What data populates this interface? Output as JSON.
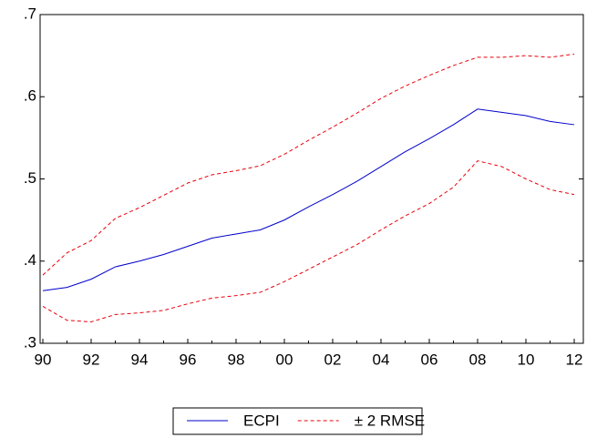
{
  "chart_data": {
    "type": "line",
    "categories": [
      "90",
      null,
      "92",
      null,
      "94",
      null,
      "96",
      null,
      "98",
      null,
      "00",
      null,
      "02",
      null,
      "04",
      null,
      "06",
      null,
      "08",
      null,
      "10",
      null,
      "12"
    ],
    "series": [
      {
        "name": "ECPI",
        "color": "#0000cc",
        "style": "solid",
        "values": [
          0.364,
          0.368,
          0.378,
          0.393,
          0.4,
          0.408,
          0.418,
          0.428,
          0.433,
          0.438,
          0.45,
          0.466,
          0.481,
          0.497,
          0.515,
          0.533,
          0.549,
          0.566,
          0.585,
          0.581,
          0.577,
          0.57,
          0.566
        ]
      },
      {
        "name": "± 2 RMSE",
        "color": "#e8000b",
        "style": "dashed",
        "values": [
          0.383,
          0.41,
          0.425,
          0.452,
          0.465,
          0.48,
          0.495,
          0.505,
          0.51,
          0.516,
          0.53,
          0.547,
          0.563,
          0.58,
          0.598,
          0.613,
          0.626,
          0.638,
          0.648,
          0.648,
          0.65,
          0.648,
          0.652
        ],
        "lower": [
          0.345,
          0.328,
          0.326,
          0.335,
          0.337,
          0.34,
          0.348,
          0.355,
          0.358,
          0.362,
          0.375,
          0.39,
          0.405,
          0.42,
          0.438,
          0.455,
          0.47,
          0.49,
          0.522,
          0.515,
          0.5,
          0.487,
          0.481
        ]
      }
    ],
    "ylim": [
      0.3,
      0.7
    ],
    "yticks": [
      {
        "value": 0.3,
        "label": ".3"
      },
      {
        "value": 0.4,
        "label": ".4"
      },
      {
        "value": 0.5,
        "label": ".5"
      },
      {
        "value": 0.6,
        "label": ".6"
      },
      {
        "value": 0.7,
        "label": ".7"
      }
    ],
    "legend": "bottom"
  }
}
